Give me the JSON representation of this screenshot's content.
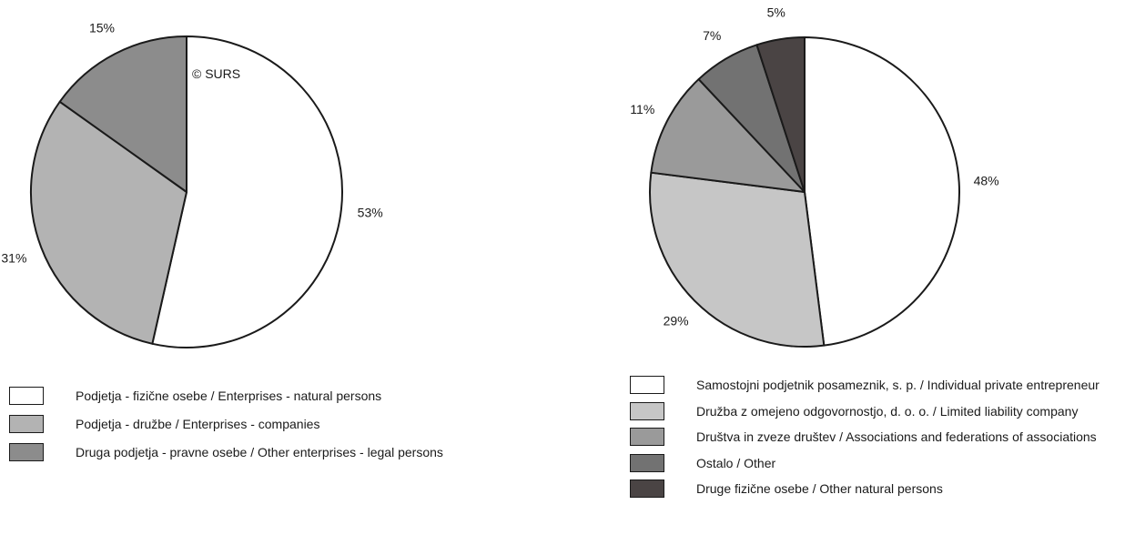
{
  "credit": "© SURS",
  "chart_data": [
    {
      "type": "pie",
      "title": "",
      "slices": [
        {
          "label": "Podjetja - fizične osebe / Enterprises - natural persons",
          "value": 53,
          "value_label": "53%",
          "color": "#ffffff"
        },
        {
          "label": "Podjetja - družbe / Enterprises - companies",
          "value": 31,
          "value_label": "31%",
          "color": "#b3b3b3"
        },
        {
          "label": "Druga podjetja - pravne osebe / Other enterprises - legal persons",
          "value": 15,
          "value_label": "15%",
          "color": "#8c8c8c"
        }
      ],
      "start_angle_deg": 0,
      "direction": "clockwise",
      "legend_position": "bottom"
    },
    {
      "type": "pie",
      "title": "",
      "slices": [
        {
          "label": "Samostojni podjetnik posameznik, s. p. / Individual private entrepreneur",
          "value": 48,
          "value_label": "48%",
          "color": "#ffffff"
        },
        {
          "label": "Družba z omejeno odgovornostjo, d. o. o. / Limited liability company",
          "value": 29,
          "value_label": "29%",
          "color": "#c6c6c6"
        },
        {
          "label": "Društva in zveze društev / Associations and federations of associations",
          "value": 11,
          "value_label": "11%",
          "color": "#9a9a9a"
        },
        {
          "label": "Ostalo / Other",
          "value": 7,
          "value_label": "7%",
          "color": "#727272"
        },
        {
          "label": "Druge fizične osebe / Other natural persons",
          "value": 5,
          "value_label": "5%",
          "color": "#4a4444"
        }
      ],
      "start_angle_deg": 0,
      "direction": "clockwise",
      "legend_position": "bottom"
    }
  ]
}
